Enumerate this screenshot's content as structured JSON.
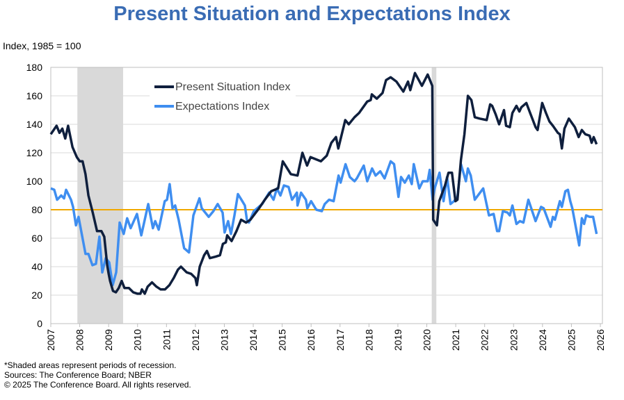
{
  "chart_data": {
    "type": "line",
    "title": "Present Situation and Expectations Index",
    "ylabel": "Index, 1985 = 100",
    "xlim": [
      2007,
      2026
    ],
    "ylim": [
      0,
      180
    ],
    "yticks": [
      "0",
      "20",
      "40",
      "60",
      "80",
      "100",
      "120",
      "140",
      "160",
      "180"
    ],
    "xticks": [
      "2007",
      "2008",
      "2009",
      "2010",
      "2011",
      "2012",
      "2013",
      "2014",
      "2015",
      "2016",
      "2017",
      "2018",
      "2019",
      "2020",
      "2021",
      "2022",
      "2023",
      "2024",
      "2025",
      "2026"
    ],
    "grid": true,
    "legend_position": "top-center",
    "reference_line": {
      "value": 80,
      "color": "#f0a800"
    },
    "recessions": [
      [
        2007.92,
        2009.5
      ],
      [
        2020.17,
        2020.33
      ]
    ],
    "recession_color": "#d9d9d9",
    "series": [
      {
        "name": "Present Situation Index",
        "color": "#0f1f3d",
        "points": [
          [
            2007.0,
            133
          ],
          [
            2007.2,
            139
          ],
          [
            2007.3,
            134
          ],
          [
            2007.4,
            137
          ],
          [
            2007.5,
            130
          ],
          [
            2007.6,
            139
          ],
          [
            2007.75,
            124
          ],
          [
            2007.9,
            117
          ],
          [
            2008.0,
            114
          ],
          [
            2008.1,
            114
          ],
          [
            2008.2,
            105
          ],
          [
            2008.3,
            90
          ],
          [
            2008.45,
            78
          ],
          [
            2008.6,
            65
          ],
          [
            2008.75,
            65
          ],
          [
            2008.85,
            61
          ],
          [
            2008.95,
            41
          ],
          [
            2009.0,
            35
          ],
          [
            2009.05,
            30
          ],
          [
            2009.15,
            23
          ],
          [
            2009.25,
            22
          ],
          [
            2009.35,
            25
          ],
          [
            2009.45,
            30
          ],
          [
            2009.55,
            25
          ],
          [
            2009.7,
            25
          ],
          [
            2009.85,
            22
          ],
          [
            2010.0,
            21
          ],
          [
            2010.1,
            21
          ],
          [
            2010.15,
            24
          ],
          [
            2010.25,
            21
          ],
          [
            2010.35,
            26
          ],
          [
            2010.5,
            29
          ],
          [
            2010.65,
            26
          ],
          [
            2010.8,
            24
          ],
          [
            2010.95,
            24
          ],
          [
            2011.1,
            27
          ],
          [
            2011.25,
            32
          ],
          [
            2011.4,
            38
          ],
          [
            2011.5,
            40
          ],
          [
            2011.7,
            36
          ],
          [
            2011.85,
            35
          ],
          [
            2012.0,
            32
          ],
          [
            2012.05,
            27
          ],
          [
            2012.15,
            40
          ],
          [
            2012.3,
            48
          ],
          [
            2012.4,
            51
          ],
          [
            2012.5,
            46
          ],
          [
            2012.7,
            47
          ],
          [
            2012.85,
            48
          ],
          [
            2012.95,
            56
          ],
          [
            2013.05,
            57
          ],
          [
            2013.1,
            62
          ],
          [
            2013.25,
            58
          ],
          [
            2013.42,
            65
          ],
          [
            2013.58,
            73
          ],
          [
            2013.75,
            71
          ],
          [
            2013.9,
            73
          ],
          [
            2014.2,
            81
          ],
          [
            2014.4,
            87
          ],
          [
            2014.62,
            93
          ],
          [
            2014.86,
            95
          ],
          [
            2015.02,
            114
          ],
          [
            2015.3,
            105
          ],
          [
            2015.53,
            104
          ],
          [
            2015.7,
            120
          ],
          [
            2015.86,
            111
          ],
          [
            2015.98,
            117
          ],
          [
            2016.34,
            114
          ],
          [
            2016.54,
            118
          ],
          [
            2016.7,
            127
          ],
          [
            2016.86,
            131
          ],
          [
            2016.94,
            123
          ],
          [
            2017.18,
            143
          ],
          [
            2017.3,
            140
          ],
          [
            2017.5,
            145
          ],
          [
            2017.66,
            148
          ],
          [
            2017.94,
            156
          ],
          [
            2018.06,
            157
          ],
          [
            2018.1,
            161
          ],
          [
            2018.27,
            158
          ],
          [
            2018.47,
            162
          ],
          [
            2018.59,
            171
          ],
          [
            2018.75,
            173
          ],
          [
            2018.95,
            170
          ],
          [
            2019.19,
            163
          ],
          [
            2019.35,
            170
          ],
          [
            2019.43,
            164
          ],
          [
            2019.59,
            176
          ],
          [
            2019.83,
            167
          ],
          [
            2020.03,
            175
          ],
          [
            2020.19,
            167
          ],
          [
            2020.22,
            73
          ],
          [
            2020.35,
            69
          ],
          [
            2020.43,
            86
          ],
          [
            2020.63,
            97
          ],
          [
            2020.75,
            106
          ],
          [
            2020.87,
            106
          ],
          [
            2020.99,
            86
          ],
          [
            2021.06,
            87
          ],
          [
            2021.18,
            115
          ],
          [
            2021.3,
            133
          ],
          [
            2021.42,
            160
          ],
          [
            2021.54,
            157
          ],
          [
            2021.66,
            145
          ],
          [
            2021.83,
            144
          ],
          [
            2022.07,
            143
          ],
          [
            2022.19,
            154
          ],
          [
            2022.26,
            153
          ],
          [
            2022.38,
            147
          ],
          [
            2022.5,
            140
          ],
          [
            2022.67,
            150
          ],
          [
            2022.74,
            139
          ],
          [
            2022.87,
            138
          ],
          [
            2022.96,
            148
          ],
          [
            2023.1,
            153
          ],
          [
            2023.2,
            149
          ],
          [
            2023.27,
            152
          ],
          [
            2023.44,
            155
          ],
          [
            2023.59,
            147
          ],
          [
            2023.76,
            138
          ],
          [
            2023.83,
            136
          ],
          [
            2023.99,
            155
          ],
          [
            2024.12,
            148
          ],
          [
            2024.24,
            142
          ],
          [
            2024.36,
            139
          ],
          [
            2024.53,
            134
          ],
          [
            2024.6,
            133
          ],
          [
            2024.67,
            123
          ],
          [
            2024.76,
            137
          ],
          [
            2024.91,
            144
          ],
          [
            2025.12,
            138
          ],
          [
            2025.25,
            131
          ],
          [
            2025.36,
            136
          ],
          [
            2025.48,
            133
          ],
          [
            2025.63,
            132
          ],
          [
            2025.7,
            127
          ],
          [
            2025.77,
            131
          ],
          [
            2025.87,
            126
          ]
        ]
      },
      {
        "name": "Expectations Index",
        "color": "#3f8ef0",
        "points": [
          [
            2007.0,
            95
          ],
          [
            2007.12,
            94
          ],
          [
            2007.22,
            87
          ],
          [
            2007.36,
            90
          ],
          [
            2007.46,
            88
          ],
          [
            2007.53,
            94
          ],
          [
            2007.7,
            87
          ],
          [
            2007.77,
            82
          ],
          [
            2007.87,
            69
          ],
          [
            2007.96,
            75
          ],
          [
            2008.2,
            49
          ],
          [
            2008.3,
            49
          ],
          [
            2008.44,
            41
          ],
          [
            2008.56,
            42
          ],
          [
            2008.68,
            61
          ],
          [
            2008.78,
            36
          ],
          [
            2008.9,
            46
          ],
          [
            2009.02,
            43
          ],
          [
            2009.14,
            27
          ],
          [
            2009.26,
            36
          ],
          [
            2009.38,
            71
          ],
          [
            2009.52,
            63
          ],
          [
            2009.64,
            74
          ],
          [
            2009.76,
            67
          ],
          [
            2009.98,
            77
          ],
          [
            2010.13,
            62
          ],
          [
            2010.37,
            84
          ],
          [
            2010.53,
            67
          ],
          [
            2010.61,
            72
          ],
          [
            2010.73,
            66
          ],
          [
            2010.94,
            86
          ],
          [
            2011.02,
            87
          ],
          [
            2011.11,
            98
          ],
          [
            2011.21,
            81
          ],
          [
            2011.3,
            83
          ],
          [
            2011.42,
            73
          ],
          [
            2011.61,
            53
          ],
          [
            2011.78,
            50
          ],
          [
            2011.93,
            76
          ],
          [
            2012.14,
            88
          ],
          [
            2012.22,
            81
          ],
          [
            2012.46,
            75
          ],
          [
            2012.62,
            79
          ],
          [
            2012.77,
            84
          ],
          [
            2012.94,
            78
          ],
          [
            2013.01,
            64
          ],
          [
            2013.13,
            72
          ],
          [
            2013.23,
            63
          ],
          [
            2013.35,
            76
          ],
          [
            2013.47,
            91
          ],
          [
            2013.59,
            87
          ],
          [
            2013.71,
            83
          ],
          [
            2013.78,
            73
          ],
          [
            2013.85,
            71
          ],
          [
            2014.02,
            79
          ],
          [
            2014.19,
            82
          ],
          [
            2014.31,
            84
          ],
          [
            2014.55,
            92
          ],
          [
            2014.7,
            87
          ],
          [
            2014.82,
            95
          ],
          [
            2014.94,
            90
          ],
          [
            2015.06,
            97
          ],
          [
            2015.22,
            96
          ],
          [
            2015.34,
            87
          ],
          [
            2015.51,
            92
          ],
          [
            2015.53,
            83
          ],
          [
            2015.65,
            92
          ],
          [
            2015.82,
            87
          ],
          [
            2015.87,
            81
          ],
          [
            2016.0,
            86
          ],
          [
            2016.18,
            80
          ],
          [
            2016.37,
            79
          ],
          [
            2016.47,
            84
          ],
          [
            2016.62,
            87
          ],
          [
            2016.78,
            86
          ],
          [
            2016.95,
            104
          ],
          [
            2017.02,
            99
          ],
          [
            2017.19,
            112
          ],
          [
            2017.34,
            103
          ],
          [
            2017.5,
            100
          ],
          [
            2017.58,
            102
          ],
          [
            2017.82,
            111
          ],
          [
            2017.94,
            100
          ],
          [
            2018.11,
            109
          ],
          [
            2018.23,
            104
          ],
          [
            2018.39,
            107
          ],
          [
            2018.54,
            102
          ],
          [
            2018.75,
            114
          ],
          [
            2018.87,
            112
          ],
          [
            2019.02,
            89
          ],
          [
            2019.11,
            103
          ],
          [
            2019.24,
            99
          ],
          [
            2019.38,
            104
          ],
          [
            2019.48,
            98
          ],
          [
            2019.55,
            112
          ],
          [
            2019.74,
            95
          ],
          [
            2019.86,
            100
          ],
          [
            2020.03,
            100
          ],
          [
            2020.1,
            108
          ],
          [
            2020.2,
            87
          ],
          [
            2020.27,
            95
          ],
          [
            2020.44,
            106
          ],
          [
            2020.58,
            86
          ],
          [
            2020.7,
            103
          ],
          [
            2020.82,
            84
          ],
          [
            2020.94,
            86
          ],
          [
            2021.06,
            89
          ],
          [
            2021.18,
            112
          ],
          [
            2021.35,
            100
          ],
          [
            2021.42,
            109
          ],
          [
            2021.52,
            104
          ],
          [
            2021.66,
            87
          ],
          [
            2021.95,
            95
          ],
          [
            2022.15,
            76
          ],
          [
            2022.31,
            77
          ],
          [
            2022.43,
            65
          ],
          [
            2022.5,
            65
          ],
          [
            2022.63,
            79
          ],
          [
            2022.79,
            78
          ],
          [
            2022.87,
            76
          ],
          [
            2022.96,
            83
          ],
          [
            2023.1,
            70
          ],
          [
            2023.22,
            72
          ],
          [
            2023.34,
            71
          ],
          [
            2023.51,
            87
          ],
          [
            2023.76,
            72
          ],
          [
            2023.95,
            82
          ],
          [
            2024.04,
            81
          ],
          [
            2024.28,
            68
          ],
          [
            2024.36,
            75
          ],
          [
            2024.43,
            73
          ],
          [
            2024.6,
            86
          ],
          [
            2024.67,
            82
          ],
          [
            2024.79,
            93
          ],
          [
            2024.88,
            94
          ],
          [
            2024.96,
            86
          ],
          [
            2025.03,
            81
          ],
          [
            2025.27,
            55
          ],
          [
            2025.36,
            74
          ],
          [
            2025.44,
            70
          ],
          [
            2025.51,
            76
          ],
          [
            2025.63,
            75
          ],
          [
            2025.75,
            75
          ],
          [
            2025.87,
            63
          ]
        ]
      }
    ]
  },
  "notes": [
    "*Shaded areas represent periods of recession.",
    "Sources:  The Conference Board;  NBER",
    "© 2025 The Conference Board. All rights reserved."
  ]
}
